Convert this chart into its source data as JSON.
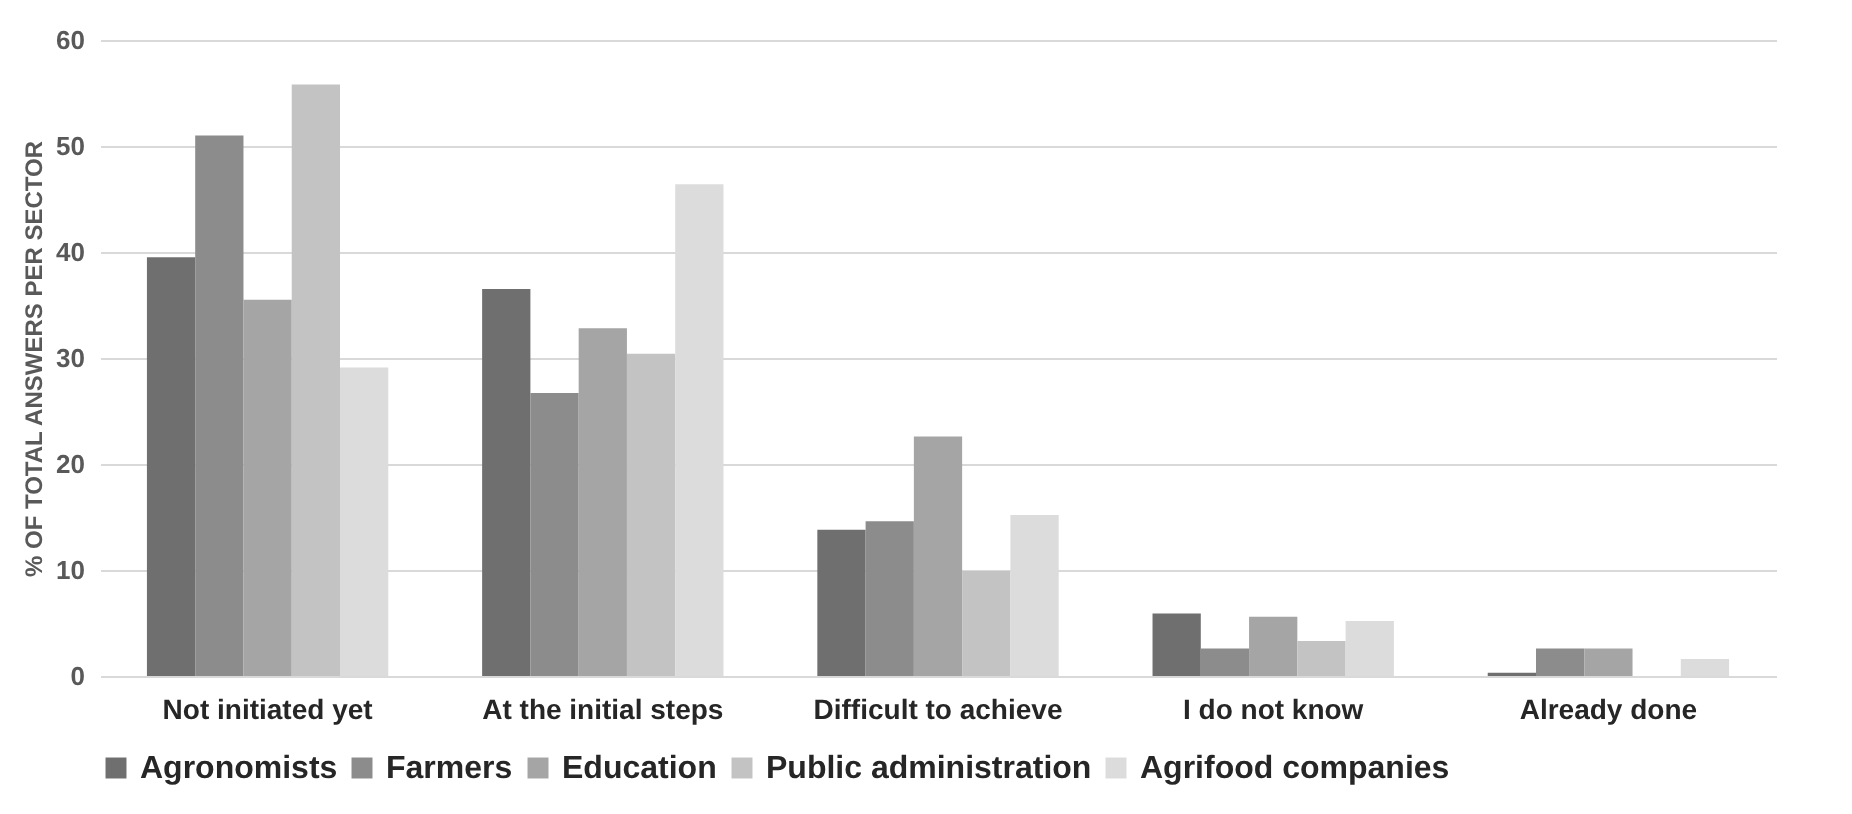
{
  "chart_data": {
    "type": "bar",
    "ylabel": "% OF TOTAL ANSWERS PER SECTOR",
    "categories": [
      "Not initiated yet",
      "At the initial steps",
      "Difficult to achieve",
      "I do not know",
      "Already done"
    ],
    "series": [
      {
        "name": "Agronomists",
        "color": "#6f6f6f",
        "values": [
          39.5,
          36.5,
          13.8,
          5.9,
          0.3
        ]
      },
      {
        "name": "Farmers",
        "color": "#8c8c8c",
        "values": [
          51.0,
          26.7,
          14.6,
          2.6,
          2.6
        ]
      },
      {
        "name": "Education",
        "color": "#a5a5a5",
        "values": [
          35.5,
          32.8,
          22.6,
          5.6,
          2.6
        ]
      },
      {
        "name": "Public administration",
        "color": "#c3c3c3",
        "values": [
          55.8,
          30.4,
          9.9,
          3.3,
          0
        ]
      },
      {
        "name": "Agrifood companies",
        "color": "#dcdcdc",
        "values": [
          29.1,
          46.4,
          15.2,
          5.2,
          1.6
        ]
      }
    ],
    "ylim": [
      0,
      60
    ],
    "yticks": [
      0,
      10,
      20,
      30,
      40,
      50,
      60
    ],
    "grid": "y",
    "legend": "bottom"
  }
}
